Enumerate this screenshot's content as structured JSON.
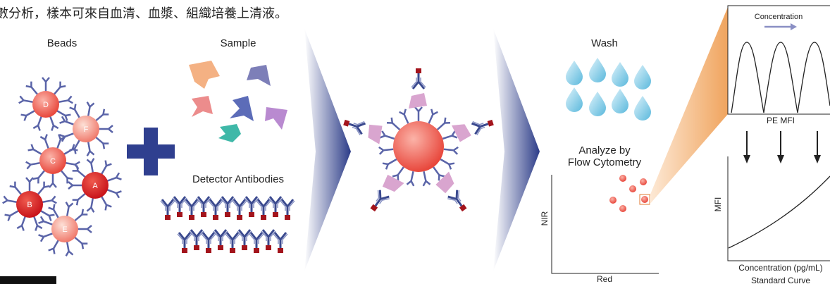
{
  "header": {
    "text": "數分析，樣本可來自血清、血漿、組織培養上清液。"
  },
  "beads": {
    "label": "Beads",
    "letters": [
      "D",
      "F",
      "C",
      "A",
      "B",
      "E"
    ]
  },
  "sample": {
    "label": "Sample"
  },
  "detector": {
    "label": "Detector Antibodies"
  },
  "wash": {
    "label": "Wash"
  },
  "analyze": {
    "title_lines": [
      "Analyze by",
      "Flow Cytometry"
    ],
    "y_axis": "NIR",
    "x_axis": "Red"
  },
  "histogram": {
    "title": "Concentration",
    "x_label": "PE MFI"
  },
  "curve": {
    "y_axis": "MFI",
    "x_axis": "Concentration (pg/mL)",
    "title": "Standard Curve"
  }
}
